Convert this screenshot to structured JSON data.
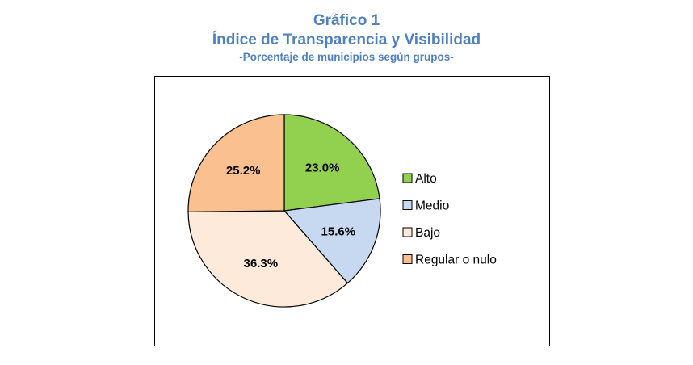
{
  "chart_data": {
    "type": "pie",
    "title": "Gráfico 1",
    "subtitle": "Índice de Transparencia y Visibilidad",
    "caption": "-Porcentaje de municipios según grupos-",
    "legend_position": "right",
    "slices": [
      {
        "label": "Alto",
        "value": 23.0,
        "display": "23.0%",
        "color": "#92d050"
      },
      {
        "label": "Medio",
        "value": 15.6,
        "display": "15.6%",
        "color": "#c6d9f1"
      },
      {
        "label": "Bajo",
        "value": 36.3,
        "display": "36.3%",
        "color": "#fdeada"
      },
      {
        "label": "Regular o nulo",
        "value": 25.2,
        "display": "25.2%",
        "color": "#fac090"
      }
    ]
  }
}
